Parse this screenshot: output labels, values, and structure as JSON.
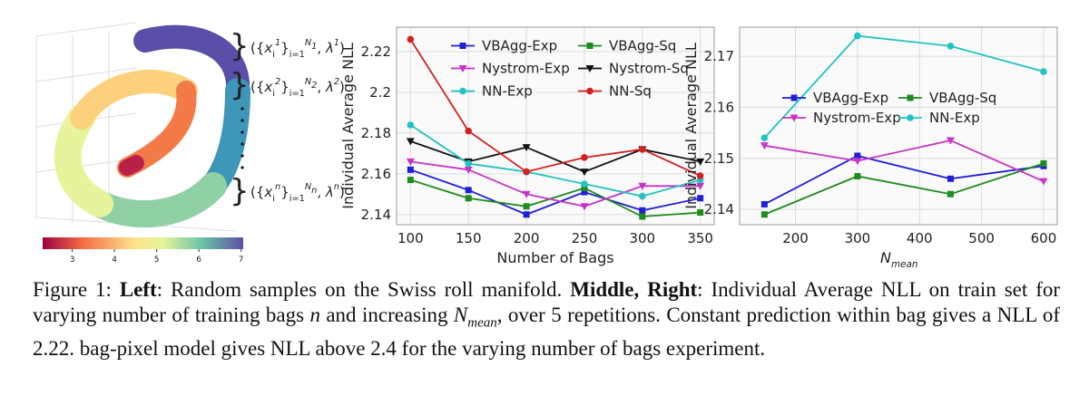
{
  "left_panel": {
    "annotations": [
      [
        {
          "t": "({"
        },
        {
          "t": "x",
          "s": "i"
        },
        {
          "t": "i",
          "s": "sub"
        },
        {
          "t": "1",
          "s": "sup"
        },
        {
          "t": "}"
        },
        {
          "t": "i=1",
          "s": "sub"
        },
        {
          "t": "N",
          "s": "sup"
        },
        {
          "t": "1",
          "s": "supsub"
        },
        {
          "t": ", "
        },
        {
          "t": "λ",
          "s": "i"
        },
        {
          "t": "1",
          "s": "sup"
        },
        {
          "t": ")"
        }
      ],
      [
        {
          "t": "({"
        },
        {
          "t": "x",
          "s": "i"
        },
        {
          "t": "i",
          "s": "sub"
        },
        {
          "t": "2",
          "s": "sup"
        },
        {
          "t": "}"
        },
        {
          "t": "i=1",
          "s": "sub"
        },
        {
          "t": "N",
          "s": "sup"
        },
        {
          "t": "2",
          "s": "supsub"
        },
        {
          "t": ", "
        },
        {
          "t": "λ",
          "s": "i"
        },
        {
          "t": "2",
          "s": "sup"
        },
        {
          "t": ")"
        }
      ],
      [
        {
          "t": "({"
        },
        {
          "t": "x",
          "s": "i"
        },
        {
          "t": "i",
          "s": "sub"
        },
        {
          "t": "n",
          "s": "sup"
        },
        {
          "t": "}"
        },
        {
          "t": "i=1",
          "s": "sub"
        },
        {
          "t": "N",
          "s": "sup"
        },
        {
          "t": "n",
          "s": "supsub"
        },
        {
          "t": ", "
        },
        {
          "t": "λ",
          "s": "i"
        },
        {
          "t": "n",
          "s": "sup"
        },
        {
          "t": ")"
        }
      ]
    ],
    "colorbar_lim": [
      2.3,
      7.05
    ],
    "colorbar_ticks": [
      3,
      4,
      5,
      6,
      7
    ]
  },
  "chart_data": [
    {
      "type": "line",
      "x_label": "Number of Bags",
      "y_label": "Individual Average NLL",
      "x": [
        100,
        150,
        200,
        250,
        300,
        350
      ],
      "xlim": [
        88,
        362
      ],
      "xticks": [
        100,
        150,
        200,
        250,
        300,
        350
      ],
      "ylim": [
        2.135,
        2.232
      ],
      "yticks": [
        2.14,
        2.16,
        2.18,
        2.2,
        {
          "value": 2.22,
          "label": "2.22"
        }
      ],
      "grid": true,
      "legend": {
        "loc": "upper right",
        "ncol": 2
      },
      "series": [
        {
          "name": "VBAgg-Exp",
          "color": "#1f1fd6",
          "marker": "square",
          "values": [
            2.162,
            2.152,
            2.14,
            2.151,
            2.142,
            2.148
          ]
        },
        {
          "name": "VBAgg-Sq",
          "color": "#1e8c1e",
          "marker": "square",
          "values": [
            2.157,
            2.148,
            2.144,
            2.153,
            2.139,
            2.141
          ]
        },
        {
          "name": "Nystrom-Exp",
          "color": "#c832c8",
          "marker": "triangle-down",
          "values": [
            2.166,
            2.162,
            2.15,
            2.144,
            2.154,
            2.154
          ]
        },
        {
          "name": "Nystrom-Sq",
          "color": "#111111",
          "marker": "triangle-down",
          "values": [
            2.176,
            2.166,
            2.173,
            2.161,
            2.172,
            2.166
          ]
        },
        {
          "name": "NN-Exp",
          "color": "#22c3c3",
          "marker": "circle",
          "values": [
            2.184,
            2.165,
            2.161,
            2.155,
            2.149,
            2.157
          ]
        },
        {
          "name": "NN-Sq",
          "color": "#d62020",
          "marker": "circle",
          "values": [
            2.226,
            2.181,
            2.161,
            2.168,
            2.172,
            2.159
          ]
        }
      ]
    },
    {
      "type": "line",
      "x_label": [
        {
          "t": "N",
          "s": "i"
        },
        {
          "t": "mean",
          "s": "isub"
        }
      ],
      "y_label": "Individual Average NLL",
      "x": [
        150,
        300,
        450,
        600
      ],
      "xlim": [
        110,
        622
      ],
      "xticks": [
        200,
        300,
        400,
        500,
        600
      ],
      "ylim": [
        2.137,
        2.1757
      ],
      "yticks": [
        {
          "value": 2.14,
          "label": "2.14"
        },
        {
          "value": 2.15,
          "label": "2.15"
        },
        {
          "value": 2.16,
          "label": "2.16"
        },
        {
          "value": 2.17,
          "label": "2.17"
        }
      ],
      "grid": true,
      "legend": {
        "loc": "center",
        "ncol": 2
      },
      "series": [
        {
          "name": "VBAgg-Exp",
          "color": "#1f1fd6",
          "marker": "square",
          "values": [
            2.141,
            2.1505,
            2.146,
            2.1485
          ]
        },
        {
          "name": "VBAgg-Sq",
          "color": "#1e8c1e",
          "marker": "square",
          "values": [
            2.139,
            2.1465,
            2.143,
            2.149
          ]
        },
        {
          "name": "Nystrom-Exp",
          "color": "#c832c8",
          "marker": "triangle-down",
          "values": [
            2.1525,
            2.1495,
            2.1535,
            2.1455
          ]
        },
        {
          "name": "NN-Exp",
          "color": "#22c3c3",
          "marker": "circle",
          "values": [
            2.154,
            2.174,
            2.172,
            2.167
          ]
        }
      ]
    }
  ],
  "caption": {
    "segments": [
      {
        "t": "Figure 1: "
      },
      {
        "t": "Left",
        "s": "b"
      },
      {
        "t": ": Random samples on the Swiss roll manifold. "
      },
      {
        "t": "Middle, Right",
        "s": "b"
      },
      {
        "t": ": Individual Average NLL on train set for varying number of training bags "
      },
      {
        "t": "n",
        "s": "i"
      },
      {
        "t": " and increasing "
      },
      {
        "t": "N",
        "s": "i"
      },
      {
        "t": "mean",
        "s": "isub"
      },
      {
        "t": ", over 5 repetitions. Constant prediction within bag gives a NLL of 2.22. bag-pixel model gives NLL above 2.4 for the varying number of bags experiment."
      }
    ]
  }
}
